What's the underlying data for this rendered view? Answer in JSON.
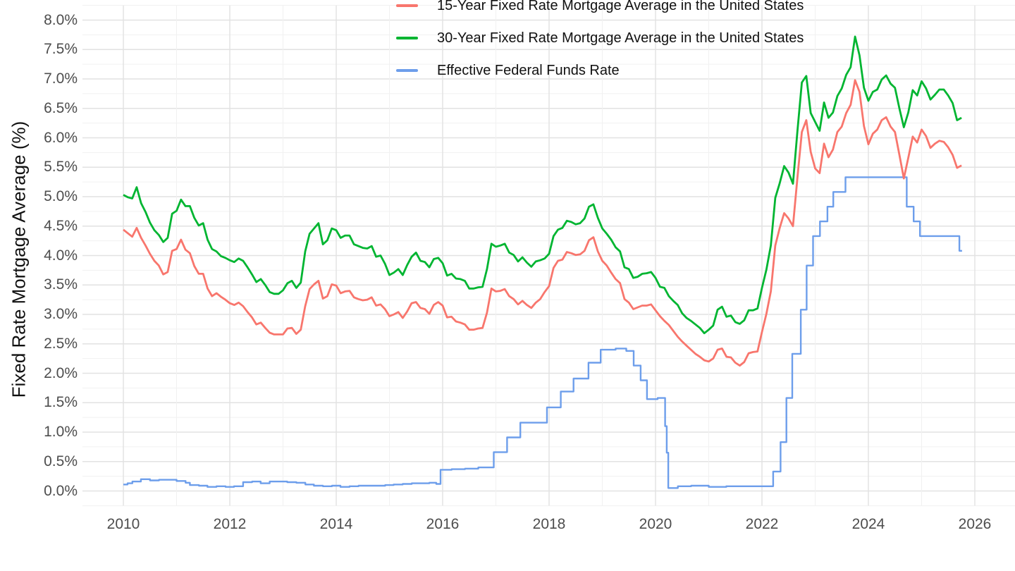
{
  "chart_data": {
    "type": "line",
    "title": "",
    "xlabel": "",
    "ylabel": "Fixed Rate Mortgage Average (%)",
    "grid": true,
    "legend_position": "top",
    "x_axis": {
      "range": [
        2009.22,
        2026.75
      ],
      "tick_values": [
        2010,
        2012,
        2014,
        2016,
        2018,
        2020,
        2022,
        2024,
        2026
      ],
      "tick_labels": [
        "2010",
        "2012",
        "2014",
        "2016",
        "2018",
        "2020",
        "2022",
        "2024",
        "2026"
      ],
      "minor_grid_years": [
        2011,
        2013,
        2015,
        2017,
        2019,
        2021,
        2023,
        2025
      ]
    },
    "y_axis": {
      "range": [
        -0.25,
        8.25
      ],
      "tick_values": [
        0,
        0.5,
        1,
        1.5,
        2,
        2.5,
        3,
        3.5,
        4,
        4.5,
        5,
        5.5,
        6,
        6.5,
        7,
        7.5,
        8
      ],
      "tick_labels": [
        "0.0%",
        "0.5%",
        "1.0%",
        "1.5%",
        "2.0%",
        "2.5%",
        "3.0%",
        "3.5%",
        "4.0%",
        "4.5%",
        "5.0%",
        "5.5%",
        "6.0%",
        "6.5%",
        "7.0%",
        "7.5%",
        "8.0%"
      ],
      "minor_step": 0.25
    },
    "series": [
      {
        "name": "15-Year Fixed Rate Mortgage Average in the United States",
        "color": "#f8766d",
        "draw": "line",
        "x_start": 2010.0,
        "x_step": 0.0833333,
        "values": [
          4.44,
          4.38,
          4.32,
          4.47,
          4.3,
          4.17,
          4.03,
          3.91,
          3.83,
          3.68,
          3.72,
          4.08,
          4.11,
          4.27,
          4.1,
          4.04,
          3.82,
          3.69,
          3.69,
          3.44,
          3.31,
          3.36,
          3.3,
          3.25,
          3.19,
          3.16,
          3.2,
          3.14,
          3.04,
          2.95,
          2.83,
          2.86,
          2.77,
          2.69,
          2.66,
          2.66,
          2.66,
          2.76,
          2.77,
          2.67,
          2.74,
          3.14,
          3.43,
          3.51,
          3.57,
          3.27,
          3.31,
          3.51,
          3.49,
          3.36,
          3.39,
          3.4,
          3.29,
          3.26,
          3.24,
          3.25,
          3.29,
          3.15,
          3.17,
          3.09,
          2.97,
          3.0,
          3.04,
          2.94,
          3.05,
          3.19,
          3.21,
          3.11,
          3.09,
          3.01,
          3.16,
          3.21,
          3.15,
          2.95,
          2.96,
          2.88,
          2.86,
          2.83,
          2.74,
          2.74,
          2.76,
          2.77,
          3.03,
          3.44,
          3.39,
          3.4,
          3.43,
          3.31,
          3.26,
          3.17,
          3.23,
          3.16,
          3.11,
          3.2,
          3.26,
          3.38,
          3.48,
          3.79,
          3.91,
          3.93,
          4.06,
          4.04,
          4.01,
          4.02,
          4.08,
          4.26,
          4.31,
          4.07,
          3.91,
          3.83,
          3.71,
          3.6,
          3.53,
          3.26,
          3.2,
          3.09,
          3.12,
          3.15,
          3.15,
          3.17,
          3.07,
          2.97,
          2.89,
          2.82,
          2.72,
          2.62,
          2.54,
          2.47,
          2.4,
          2.33,
          2.28,
          2.22,
          2.2,
          2.25,
          2.4,
          2.42,
          2.28,
          2.27,
          2.18,
          2.13,
          2.19,
          2.34,
          2.36,
          2.37,
          2.7,
          3.01,
          3.39,
          4.17,
          4.47,
          4.72,
          4.63,
          4.5,
          5.32,
          6.1,
          6.3,
          5.76,
          5.48,
          5.4,
          5.9,
          5.67,
          5.8,
          6.1,
          6.19,
          6.42,
          6.56,
          6.98,
          6.78,
          6.2,
          5.89,
          6.07,
          6.14,
          6.3,
          6.35,
          6.19,
          6.1,
          5.71,
          5.31,
          5.66,
          6.02,
          5.92,
          6.14,
          6.03,
          5.83,
          5.9,
          5.95,
          5.93,
          5.84,
          5.71,
          5.49,
          5.53
        ]
      },
      {
        "name": "30-Year Fixed Rate Mortgage Average in the United States",
        "color": "#00b531",
        "draw": "line",
        "x_start": 2010.0,
        "x_step": 0.0833333,
        "values": [
          5.03,
          4.99,
          4.97,
          5.16,
          4.89,
          4.74,
          4.56,
          4.43,
          4.35,
          4.23,
          4.3,
          4.71,
          4.76,
          4.95,
          4.84,
          4.84,
          4.64,
          4.51,
          4.55,
          4.27,
          4.11,
          4.07,
          3.99,
          3.96,
          3.92,
          3.89,
          3.95,
          3.91,
          3.8,
          3.68,
          3.55,
          3.6,
          3.5,
          3.38,
          3.35,
          3.35,
          3.41,
          3.53,
          3.57,
          3.45,
          3.54,
          4.07,
          4.37,
          4.46,
          4.55,
          4.19,
          4.26,
          4.46,
          4.43,
          4.3,
          4.34,
          4.34,
          4.19,
          4.16,
          4.13,
          4.12,
          4.16,
          3.98,
          4.0,
          3.86,
          3.67,
          3.71,
          3.77,
          3.67,
          3.84,
          3.98,
          4.05,
          3.91,
          3.89,
          3.8,
          3.94,
          3.96,
          3.87,
          3.66,
          3.69,
          3.61,
          3.6,
          3.57,
          3.44,
          3.44,
          3.46,
          3.47,
          3.77,
          4.2,
          4.15,
          4.17,
          4.2,
          4.05,
          4.01,
          3.9,
          3.97,
          3.88,
          3.81,
          3.9,
          3.92,
          3.95,
          4.03,
          4.33,
          4.44,
          4.47,
          4.59,
          4.57,
          4.53,
          4.55,
          4.63,
          4.83,
          4.87,
          4.64,
          4.46,
          4.37,
          4.27,
          4.14,
          4.07,
          3.8,
          3.77,
          3.62,
          3.64,
          3.69,
          3.7,
          3.72,
          3.62,
          3.47,
          3.45,
          3.31,
          3.23,
          3.16,
          3.02,
          2.94,
          2.89,
          2.83,
          2.77,
          2.68,
          2.74,
          2.81,
          3.08,
          3.13,
          2.96,
          2.98,
          2.87,
          2.84,
          2.9,
          3.07,
          3.07,
          3.1,
          3.45,
          3.76,
          4.17,
          4.98,
          5.23,
          5.52,
          5.41,
          5.22,
          6.11,
          6.94,
          7.05,
          6.42,
          6.27,
          6.12,
          6.6,
          6.34,
          6.43,
          6.71,
          6.84,
          7.07,
          7.2,
          7.72,
          7.4,
          6.85,
          6.63,
          6.78,
          6.82,
          6.99,
          7.06,
          6.92,
          6.85,
          6.5,
          6.18,
          6.43,
          6.81,
          6.72,
          6.96,
          6.84,
          6.65,
          6.73,
          6.82,
          6.82,
          6.72,
          6.59,
          6.3,
          6.34
        ]
      },
      {
        "name": "Effective Federal Funds Rate",
        "color": "#6d9eeb",
        "draw": "step",
        "points": [
          [
            2010.0,
            0.11
          ],
          [
            2010.08,
            0.13
          ],
          [
            2010.17,
            0.16
          ],
          [
            2010.33,
            0.2
          ],
          [
            2010.5,
            0.18
          ],
          [
            2010.67,
            0.19
          ],
          [
            2010.83,
            0.19
          ],
          [
            2011.0,
            0.17
          ],
          [
            2011.17,
            0.14
          ],
          [
            2011.25,
            0.1
          ],
          [
            2011.42,
            0.09
          ],
          [
            2011.58,
            0.07
          ],
          [
            2011.75,
            0.08
          ],
          [
            2011.92,
            0.07
          ],
          [
            2012.08,
            0.08
          ],
          [
            2012.25,
            0.15
          ],
          [
            2012.42,
            0.16
          ],
          [
            2012.58,
            0.13
          ],
          [
            2012.75,
            0.16
          ],
          [
            2012.92,
            0.16
          ],
          [
            2013.08,
            0.15
          ],
          [
            2013.25,
            0.14
          ],
          [
            2013.42,
            0.11
          ],
          [
            2013.58,
            0.09
          ],
          [
            2013.75,
            0.08
          ],
          [
            2013.92,
            0.09
          ],
          [
            2014.08,
            0.07
          ],
          [
            2014.25,
            0.08
          ],
          [
            2014.42,
            0.09
          ],
          [
            2014.58,
            0.09
          ],
          [
            2014.75,
            0.09
          ],
          [
            2014.92,
            0.1
          ],
          [
            2015.08,
            0.11
          ],
          [
            2015.25,
            0.12
          ],
          [
            2015.42,
            0.13
          ],
          [
            2015.58,
            0.13
          ],
          [
            2015.75,
            0.14
          ],
          [
            2015.88,
            0.12
          ],
          [
            2015.96,
            0.36
          ],
          [
            2016.17,
            0.37
          ],
          [
            2016.42,
            0.38
          ],
          [
            2016.67,
            0.4
          ],
          [
            2016.96,
            0.66
          ],
          [
            2017.21,
            0.91
          ],
          [
            2017.46,
            1.16
          ],
          [
            2017.96,
            1.42
          ],
          [
            2018.22,
            1.69
          ],
          [
            2018.46,
            1.91
          ],
          [
            2018.74,
            2.18
          ],
          [
            2018.97,
            2.4
          ],
          [
            2019.25,
            2.42
          ],
          [
            2019.45,
            2.38
          ],
          [
            2019.59,
            2.13
          ],
          [
            2019.72,
            1.88
          ],
          [
            2019.84,
            1.56
          ],
          [
            2020.04,
            1.58
          ],
          [
            2020.18,
            1.1
          ],
          [
            2020.21,
            0.65
          ],
          [
            2020.24,
            0.05
          ],
          [
            2020.42,
            0.08
          ],
          [
            2020.67,
            0.09
          ],
          [
            2021.0,
            0.07
          ],
          [
            2021.33,
            0.08
          ],
          [
            2021.67,
            0.08
          ],
          [
            2022.0,
            0.08
          ],
          [
            2022.21,
            0.33
          ],
          [
            2022.35,
            0.83
          ],
          [
            2022.46,
            1.58
          ],
          [
            2022.57,
            2.33
          ],
          [
            2022.73,
            3.08
          ],
          [
            2022.84,
            3.83
          ],
          [
            2022.96,
            4.33
          ],
          [
            2023.09,
            4.58
          ],
          [
            2023.23,
            4.83
          ],
          [
            2023.34,
            5.08
          ],
          [
            2023.57,
            5.33
          ],
          [
            2024.72,
            4.83
          ],
          [
            2024.85,
            4.58
          ],
          [
            2024.97,
            4.33
          ],
          [
            2025.71,
            4.08
          ],
          [
            2025.76,
            4.08
          ]
        ]
      }
    ]
  },
  "legend": {
    "items": [
      {
        "label": "15-Year Fixed Rate Mortgage Average in the United States",
        "color": "#f8766d"
      },
      {
        "label": "30-Year Fixed Rate Mortgage Average in the United States",
        "color": "#00b531"
      },
      {
        "label": "Effective Federal Funds Rate",
        "color": "#6d9eeb"
      }
    ]
  }
}
